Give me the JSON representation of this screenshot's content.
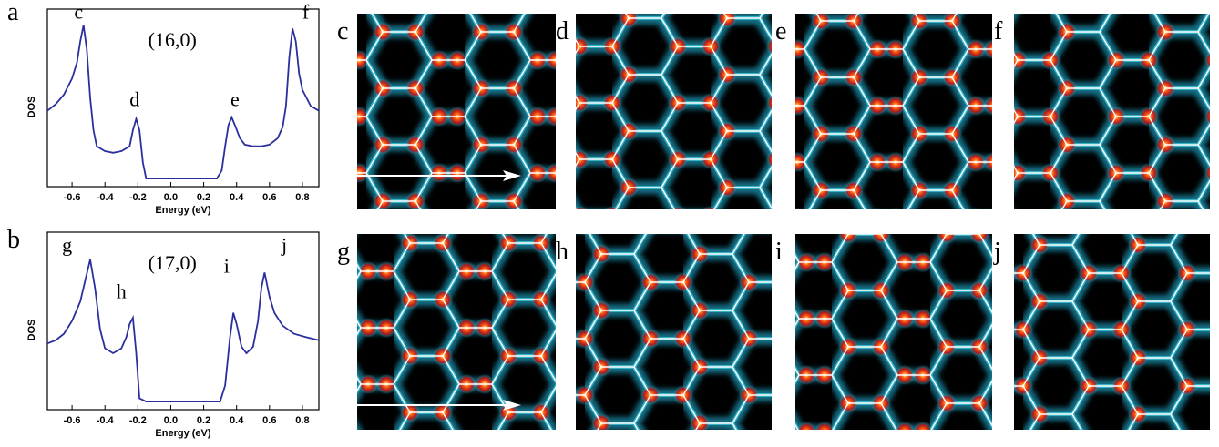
{
  "chart_data": [
    {
      "type": "line",
      "panel_label": "a",
      "xlabel": "Energy (eV)",
      "ylabel": "DOS",
      "xlim": [
        -0.75,
        0.9
      ],
      "ylim": [
        -0.05,
        1.05
      ],
      "xticks": [
        -0.6,
        -0.4,
        -0.2,
        {
          "value": 0,
          "label": "0.0"
        },
        0.2,
        0.4,
        0.6,
        0.8
      ],
      "x": [
        -0.75,
        -0.7,
        -0.65,
        -0.6,
        -0.57,
        -0.55,
        -0.53,
        -0.51,
        -0.49,
        -0.47,
        -0.45,
        -0.4,
        -0.35,
        -0.3,
        -0.25,
        -0.23,
        -0.21,
        -0.19,
        -0.17,
        -0.15,
        -0.1,
        0,
        0.1,
        0.2,
        0.28,
        0.31,
        0.33,
        0.35,
        0.37,
        0.39,
        0.42,
        0.45,
        0.5,
        0.55,
        0.6,
        0.65,
        0.68,
        0.7,
        0.72,
        0.74,
        0.76,
        0.78,
        0.8,
        0.85,
        0.9
      ],
      "series": [
        {
          "name": "(16,0)",
          "color": "#2a2f9e",
          "values": [
            0.42,
            0.46,
            0.52,
            0.62,
            0.72,
            0.85,
            0.95,
            0.8,
            0.5,
            0.3,
            0.2,
            0.17,
            0.16,
            0.17,
            0.2,
            0.3,
            0.37,
            0.3,
            0.1,
            0,
            0,
            0,
            0,
            0,
            0,
            0.05,
            0.2,
            0.33,
            0.38,
            0.33,
            0.25,
            0.21,
            0.2,
            0.2,
            0.21,
            0.25,
            0.32,
            0.45,
            0.75,
            0.93,
            0.85,
            0.65,
            0.55,
            0.45,
            0.42
          ]
        }
      ],
      "annotations": [
        {
          "text": "(16,0)",
          "x": 0.01,
          "y": 0.82
        },
        {
          "text": "c",
          "x": -0.56,
          "y": 0.99
        },
        {
          "text": "d",
          "x": -0.22,
          "y": 0.45
        },
        {
          "text": "e",
          "x": 0.39,
          "y": 0.45
        },
        {
          "text": "f",
          "x": 0.82,
          "y": 0.99
        }
      ]
    },
    {
      "type": "line",
      "panel_label": "b",
      "xlabel": "Energy (eV)",
      "ylabel": "DOS",
      "xlim": [
        -0.75,
        0.9
      ],
      "ylim": [
        -0.05,
        1.05
      ],
      "xticks": [
        -0.6,
        -0.4,
        -0.2,
        {
          "value": 0,
          "label": "0.0"
        },
        0.2,
        0.4,
        0.6,
        0.8
      ],
      "x": [
        -0.75,
        -0.7,
        -0.65,
        -0.6,
        -0.55,
        -0.52,
        -0.49,
        -0.46,
        -0.43,
        -0.4,
        -0.35,
        -0.3,
        -0.27,
        -0.25,
        -0.23,
        -0.21,
        -0.19,
        -0.15,
        -0.1,
        0,
        0.1,
        0.2,
        0.3,
        0.33,
        0.36,
        0.38,
        0.4,
        0.43,
        0.46,
        0.5,
        0.53,
        0.55,
        0.57,
        0.6,
        0.63,
        0.68,
        0.75,
        0.82,
        0.9
      ],
      "series": [
        {
          "name": "(17,0)",
          "color": "#2a2f9e",
          "values": [
            0.36,
            0.38,
            0.42,
            0.5,
            0.62,
            0.75,
            0.88,
            0.7,
            0.45,
            0.33,
            0.3,
            0.33,
            0.4,
            0.48,
            0.52,
            0.3,
            0.02,
            0,
            0,
            0,
            0,
            0,
            0,
            0.1,
            0.4,
            0.55,
            0.48,
            0.34,
            0.3,
            0.34,
            0.5,
            0.7,
            0.8,
            0.65,
            0.55,
            0.47,
            0.42,
            0.4,
            0.38
          ]
        }
      ],
      "annotations": [
        {
          "text": "(17,0)",
          "x": 0.01,
          "y": 0.82
        },
        {
          "text": "g",
          "x": -0.63,
          "y": 0.93
        },
        {
          "text": "h",
          "x": -0.3,
          "y": 0.64
        },
        {
          "text": "i",
          "x": 0.34,
          "y": 0.8
        },
        {
          "text": "j",
          "x": 0.69,
          "y": 0.93
        }
      ]
    }
  ],
  "maps": [
    {
      "label": "c"
    },
    {
      "label": "d"
    },
    {
      "label": "e"
    },
    {
      "label": "f"
    },
    {
      "label": "g"
    },
    {
      "label": "h"
    },
    {
      "label": "i"
    },
    {
      "label": "j"
    }
  ]
}
